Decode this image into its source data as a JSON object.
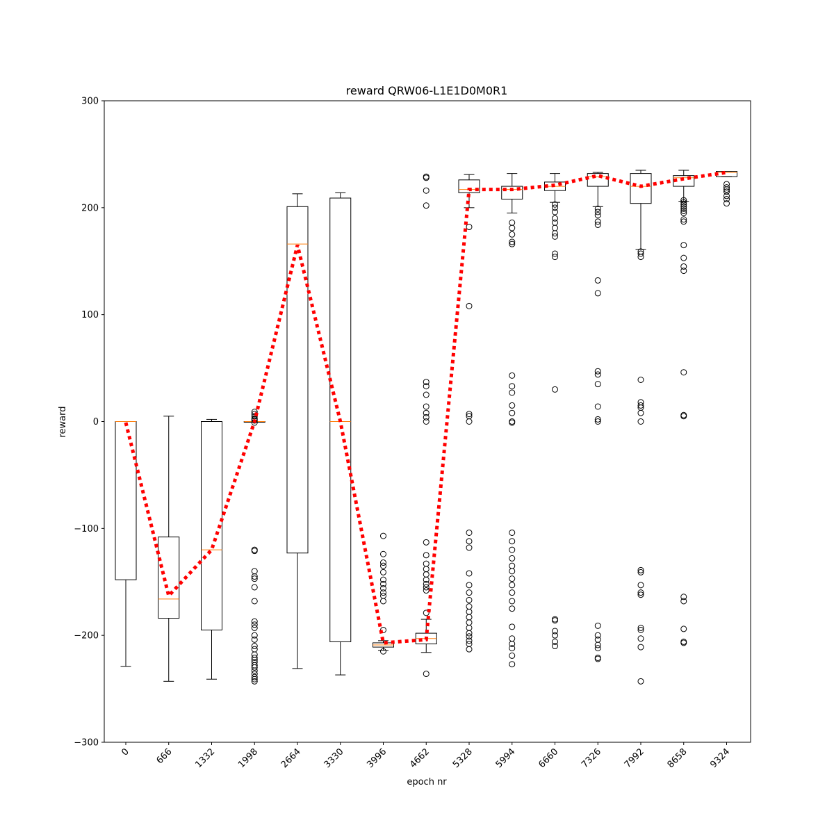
{
  "chart_data": {
    "type": "box",
    "title": "reward QRW06-L1E1D0M0R1",
    "xlabel": "epoch nr",
    "ylabel": "reward",
    "ylim": [
      -300,
      300
    ],
    "yticks": [
      -300,
      -200,
      -100,
      0,
      100,
      200,
      300
    ],
    "yticklabels": [
      "−300",
      "−200",
      "−100",
      "0",
      "100",
      "200",
      "300"
    ],
    "categories": [
      "0",
      "666",
      "1332",
      "1998",
      "2664",
      "3330",
      "3996",
      "4662",
      "5328",
      "5994",
      "6660",
      "7326",
      "7992",
      "8658",
      "9324"
    ],
    "grid": false,
    "colors": {
      "box": "#000000",
      "median": "#ff7f0e",
      "mean_line": "#ff0000"
    },
    "boxes": [
      {
        "category": "0",
        "whislo": -229,
        "q1": -148,
        "med": 0,
        "q3": 0,
        "whishi": 0,
        "fliers": []
      },
      {
        "category": "666",
        "whislo": -243,
        "q1": -184,
        "med": -166,
        "q3": -108,
        "whishi": 5,
        "fliers": []
      },
      {
        "category": "1332",
        "whislo": -241,
        "q1": -195,
        "med": -120,
        "q3": 0,
        "whishi": 2,
        "fliers": []
      },
      {
        "category": "1998",
        "whislo": 0,
        "q1": 0,
        "med": 0,
        "q3": 0,
        "whishi": 0,
        "fliers": [
          9,
          7,
          5,
          3,
          2,
          1,
          -1,
          -120,
          -121,
          -140,
          -145,
          -147,
          -155,
          -168,
          -187,
          -190,
          -193,
          -200,
          -204,
          -210,
          -213,
          -218,
          -221,
          -223,
          -225,
          -228,
          -230,
          -233,
          -236,
          -239,
          -241,
          -243
        ]
      },
      {
        "category": "2664",
        "whislo": -231,
        "q1": -123,
        "med": 166,
        "q3": 201,
        "whishi": 213,
        "fliers": []
      },
      {
        "category": "3330",
        "whislo": -237,
        "q1": -206,
        "med": 0,
        "q3": 209,
        "whishi": 214,
        "fliers": []
      },
      {
        "category": "3996",
        "whislo": -214,
        "q1": -211,
        "med": -209,
        "q3": -207,
        "whishi": -205,
        "fliers": [
          -107,
          -124,
          -132,
          -135,
          -141,
          -148,
          -152,
          -156,
          -160,
          -163,
          -168,
          -195,
          -215
        ]
      },
      {
        "category": "4662",
        "whislo": -216,
        "q1": -208,
        "med": -203,
        "q3": -198,
        "whishi": -185,
        "fliers": [
          229,
          228,
          216,
          202,
          37,
          33,
          25,
          14,
          8,
          4,
          0,
          -113,
          -125,
          -133,
          -138,
          -143,
          -148,
          -152,
          -155,
          -158,
          -179,
          -236
        ]
      },
      {
        "category": "5328",
        "whislo": 200,
        "q1": 214,
        "med": 217,
        "q3": 226,
        "whishi": 231,
        "fliers": [
          182,
          108,
          7,
          5,
          0,
          -104,
          -112,
          -118,
          -142,
          -153,
          -160,
          -167,
          -173,
          -178,
          -183,
          -188,
          -193,
          -198,
          -201,
          -205,
          -208,
          -213
        ]
      },
      {
        "category": "5994",
        "whislo": 195,
        "q1": 208,
        "med": 217,
        "q3": 220,
        "whishi": 232,
        "fliers": [
          186,
          181,
          175,
          168,
          166,
          43,
          33,
          27,
          15,
          8,
          0,
          -1,
          -104,
          -112,
          -120,
          -128,
          -135,
          -140,
          -147,
          -153,
          -160,
          -168,
          -175,
          -192,
          -203,
          -208,
          -212,
          -219,
          -227
        ]
      },
      {
        "category": "6660",
        "whislo": 205,
        "q1": 216,
        "med": 220,
        "q3": 224,
        "whishi": 232,
        "fliers": [
          203,
          200,
          196,
          190,
          186,
          181,
          176,
          173,
          157,
          154,
          30,
          -185,
          -186,
          -196,
          -200,
          -206,
          -210
        ]
      },
      {
        "category": "7326",
        "whislo": 201,
        "q1": 220,
        "med": 229,
        "q3": 232,
        "whishi": 233,
        "fliers": [
          199,
          196,
          193,
          187,
          184,
          132,
          120,
          47,
          44,
          35,
          14,
          2,
          0,
          -191,
          -200,
          -204,
          -209,
          -212,
          -221,
          -222
        ]
      },
      {
        "category": "7992",
        "whislo": 161,
        "q1": 204,
        "med": 220,
        "q3": 232,
        "whishi": 235,
        "fliers": [
          159,
          157,
          154,
          39,
          18,
          15,
          13,
          8,
          0,
          -139,
          -141,
          -153,
          -160,
          -162,
          -193,
          -195,
          -203,
          -211,
          -243
        ]
      },
      {
        "category": "8658",
        "whislo": 206,
        "q1": 220,
        "med": 228,
        "q3": 230,
        "whishi": 235,
        "fliers": [
          207,
          205,
          203,
          201,
          199,
          197,
          195,
          189,
          187,
          165,
          153,
          145,
          141,
          46,
          6,
          5,
          -164,
          -168,
          -194,
          -206,
          -207
        ]
      },
      {
        "category": "9324",
        "whislo": 229,
        "q1": 229,
        "med": 233,
        "q3": 234,
        "whishi": 234,
        "fliers": [
          222,
          219,
          217,
          215,
          211,
          208,
          204
        ]
      }
    ],
    "mean_line": {
      "style": "dotted",
      "values": [
        -1,
        -163,
        -120,
        0,
        165,
        0,
        -207,
        -204,
        217,
        217,
        221,
        230,
        220,
        227,
        233
      ]
    }
  }
}
